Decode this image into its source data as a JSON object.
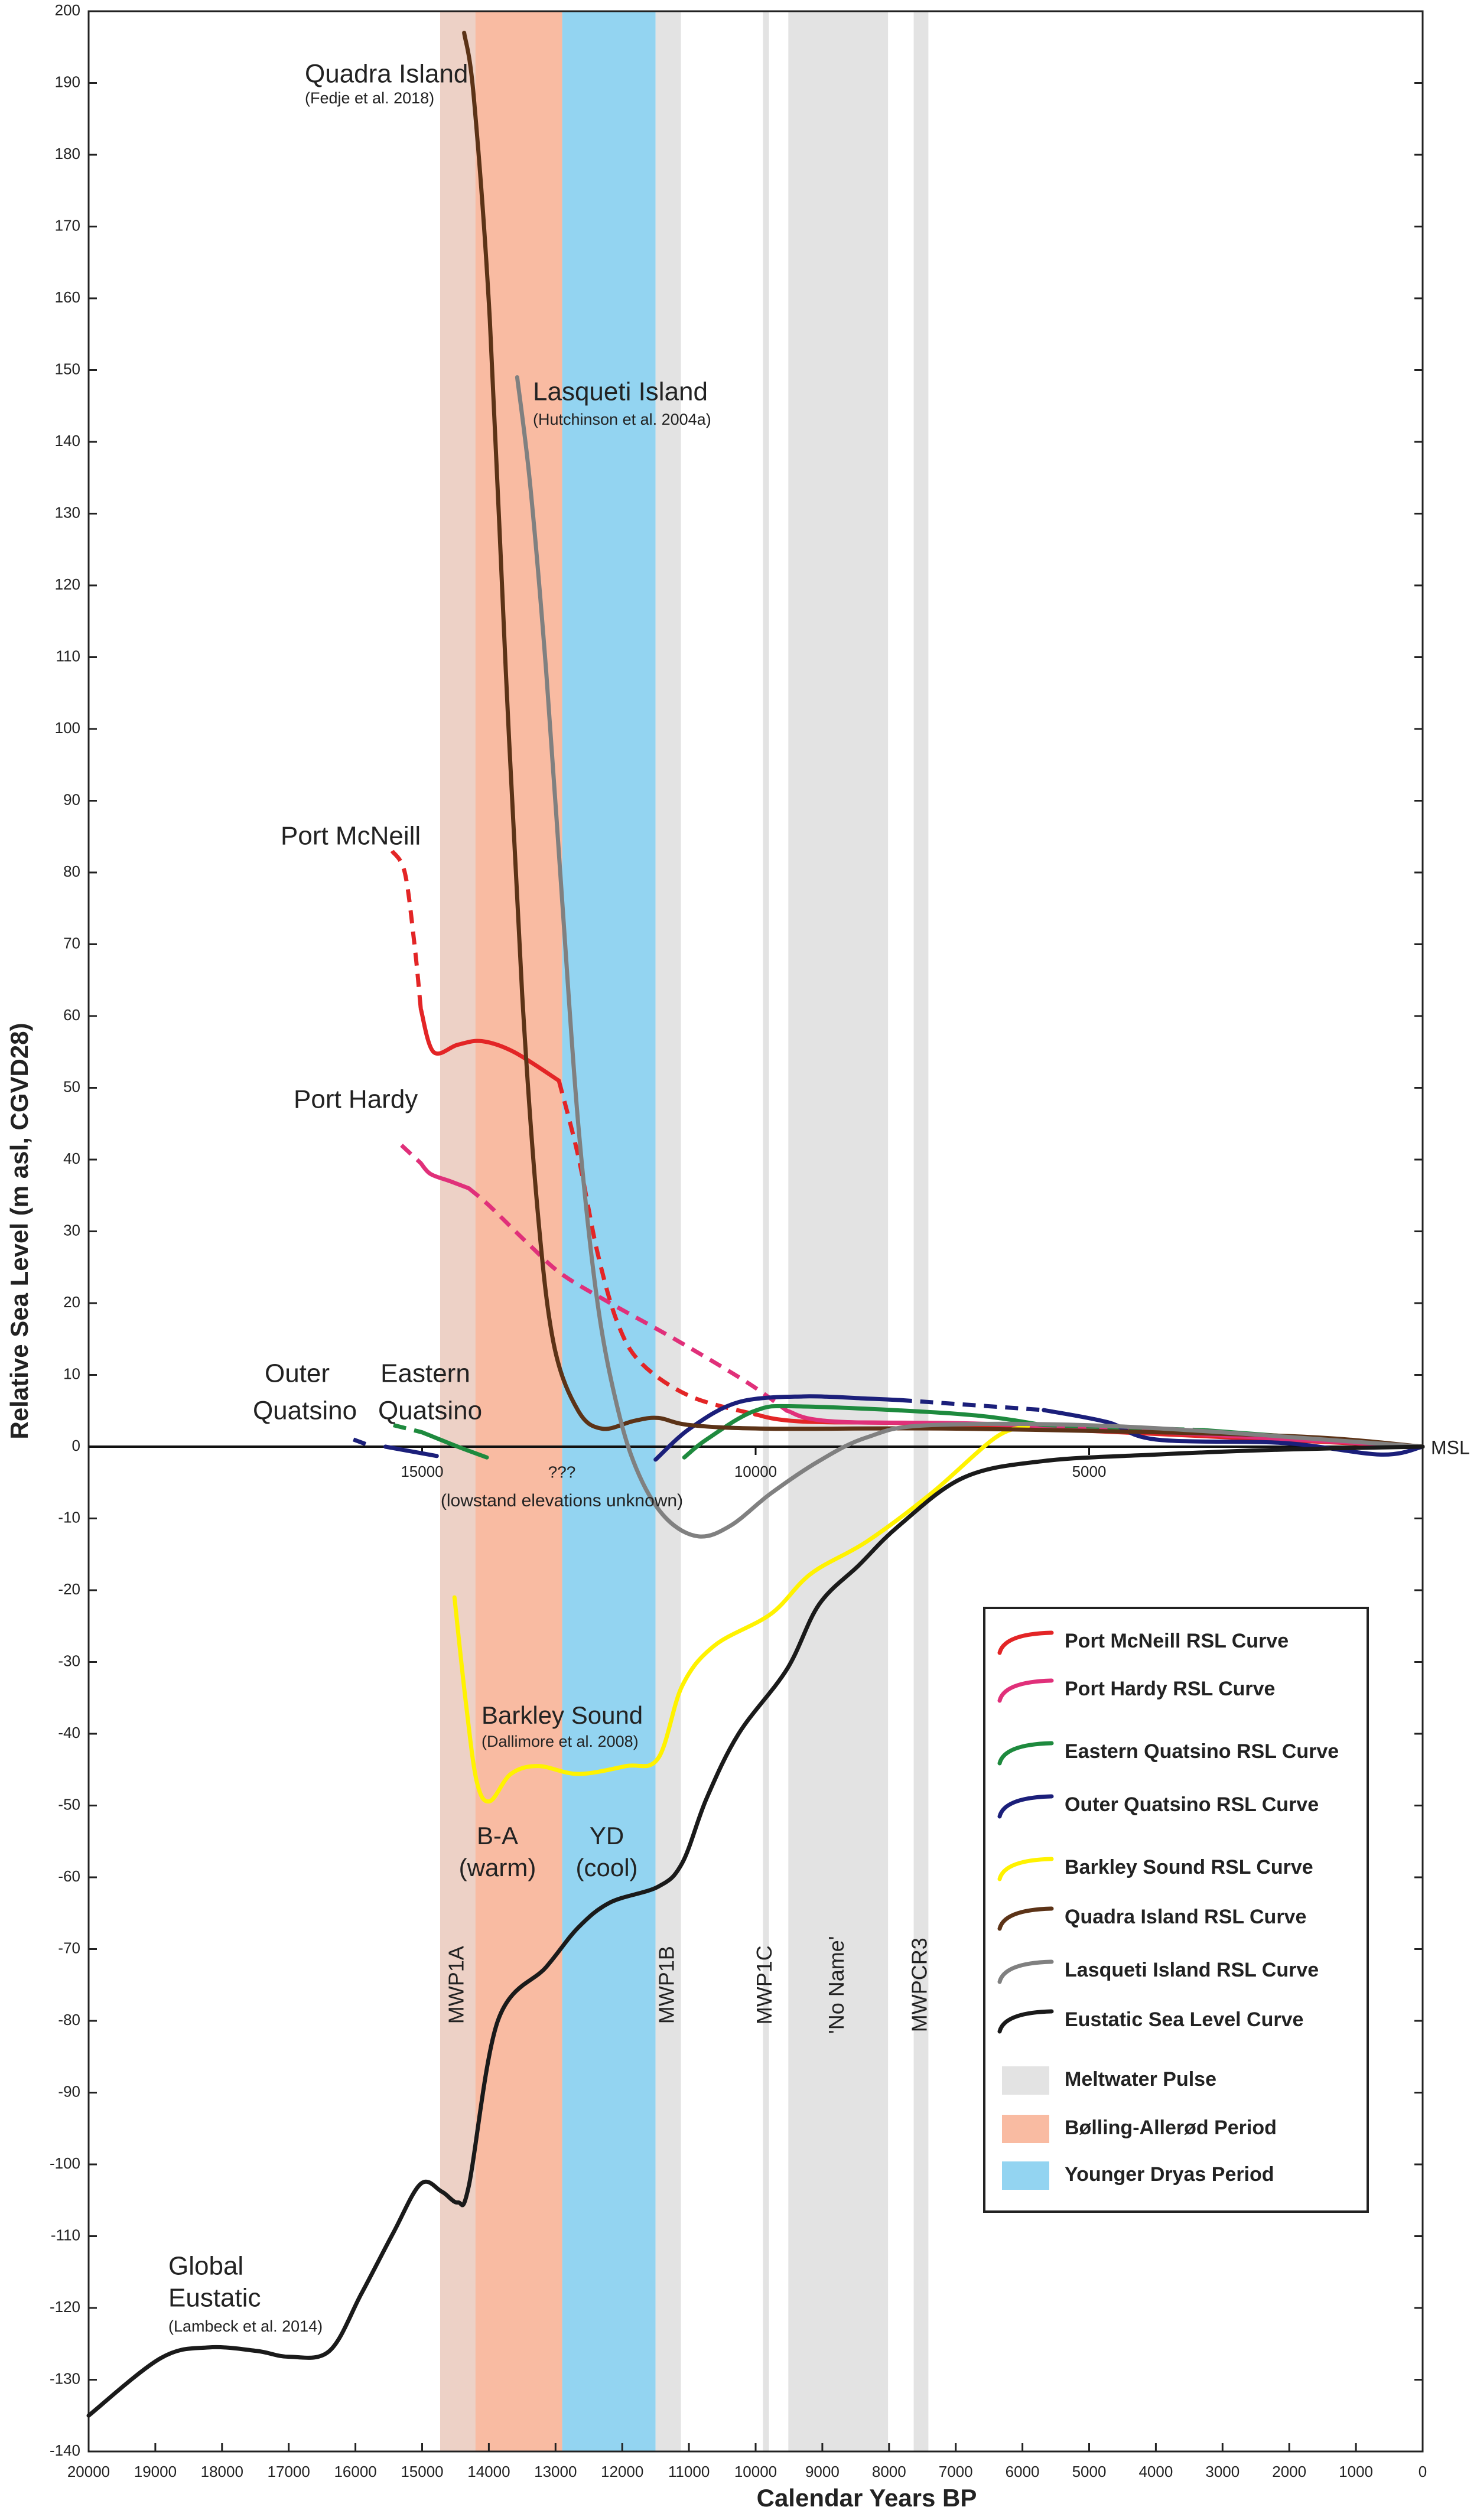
{
  "chart_data": {
    "type": "line",
    "x_label": "Calendar Years BP",
    "y_label": "Relative Sea Level (m asl, CGVD28)",
    "xlim": [
      20000,
      0
    ],
    "ylim": [
      -140,
      200
    ],
    "xticks": [
      20000,
      19000,
      18000,
      17000,
      16000,
      15000,
      14000,
      13000,
      12000,
      11000,
      10000,
      9000,
      8000,
      7000,
      6000,
      5000,
      4000,
      3000,
      2000,
      1000,
      0
    ],
    "yticks": [
      -140,
      -130,
      -120,
      -110,
      -100,
      -90,
      -80,
      -70,
      -60,
      -50,
      -40,
      -30,
      -20,
      -10,
      0,
      10,
      20,
      30,
      40,
      50,
      60,
      70,
      80,
      90,
      100,
      110,
      120,
      130,
      140,
      150,
      160,
      170,
      180,
      190,
      200
    ],
    "msl_label": "MSL",
    "msl_ticks": [
      15000,
      10000,
      5000
    ],
    "periods": [
      {
        "name": "Bølling-Allerød Period",
        "color": "#f9bba2",
        "start": 14730,
        "end": 12900
      },
      {
        "name": "Younger Dryas Period",
        "color": "#93d4f1",
        "start": 12900,
        "end": 11500
      }
    ],
    "pulses": {
      "name": "Meltwater Pulse",
      "color": "#e3e3e3",
      "bands": [
        {
          "label": "MWP1A",
          "start": 14730,
          "end": 14200
        },
        {
          "label": "MWP1B",
          "start": 11500,
          "end": 11120
        },
        {
          "label": "MWP1C",
          "start": 9890,
          "end": 9800
        },
        {
          "label": "'No Name'",
          "start": 9510,
          "end": 8015
        },
        {
          "label": "MWPCR3",
          "start": 7630,
          "end": 7410
        }
      ]
    },
    "series": [
      {
        "name": "Port McNeill RSL Curve",
        "color": "#e32526",
        "segments": [
          {
            "dashed": true,
            "x": [
              15450,
              15260,
              15115,
              15020
            ],
            "values": [
              83,
              80,
              70,
              61
            ]
          },
          {
            "dashed": false,
            "x": [
              15020,
              14830,
              14465,
              14105,
              13625,
              12950
            ],
            "values": [
              61,
              55,
              56,
              56.5,
              55,
              51
            ]
          },
          {
            "dashed": true,
            "x": [
              12950,
              12660,
              12370,
              12060,
              11700,
              10975,
              10010
            ],
            "values": [
              51,
              40.5,
              27,
              17,
              11.5,
              7,
              4.5
            ]
          },
          {
            "dashed": false,
            "x": [
              10010,
              9290,
              6880,
              0
            ],
            "values": [
              4.5,
              3.5,
              3,
              0
            ]
          }
        ]
      },
      {
        "name": "Port Hardy RSL Curve",
        "color": "#e0307a",
        "segments": [
          {
            "dashed": true,
            "x": [
              15310,
              15020
            ],
            "values": [
              42,
              39.5
            ]
          },
          {
            "dashed": false,
            "x": [
              15020,
              14875,
              14585,
              14300
            ],
            "values": [
              39.5,
              38,
              37,
              36
            ]
          },
          {
            "dashed": true,
            "x": [
              14300,
              13985,
              13380,
              12900,
              12180,
              11215,
              10135,
              9530
            ],
            "values": [
              36,
              33.5,
              28,
              24,
              20,
              15,
              9,
              5
            ]
          },
          {
            "dashed": false,
            "x": [
              9530,
              8810,
              6000,
              0
            ],
            "values": [
              5,
              3.5,
              3,
              0
            ]
          }
        ]
      },
      {
        "name": "Eastern Quatsino RSL Curve",
        "color": "#1e8a3e",
        "segments": [
          {
            "dashed": true,
            "x": [
              15430,
              15000
            ],
            "values": [
              3,
              2
            ]
          },
          {
            "dashed": false,
            "x": [
              15000,
              14465,
              14030
            ],
            "values": [
              2,
              0,
              -1.5
            ]
          },
          {
            "dashed": false,
            "x": [
              11070,
              10735,
              10010,
              9290,
              6880,
              5680
            ],
            "values": [
              -1.5,
              1,
              5,
              5.6,
              4.5,
              3
            ]
          },
          {
            "dashed": true,
            "x": [
              5680,
              3270
            ],
            "values": [
              3,
              2.3
            ]
          },
          {
            "dashed": false,
            "x": [
              3270,
              0
            ],
            "values": [
              2.3,
              0
            ]
          }
        ]
      },
      {
        "name": "Outer Quatsino RSL Curve",
        "color": "#1b1f7a",
        "segments": [
          {
            "dashed": true,
            "x": [
              16030,
              15740
            ],
            "values": [
              1,
              0
            ]
          },
          {
            "dashed": false,
            "x": [
              15550,
              14780
            ],
            "values": [
              0,
              -1.3
            ]
          },
          {
            "dashed": false,
            "x": [
              11500,
              10975,
              10255,
              9290,
              8330,
              7850
            ],
            "values": [
              -1.8,
              2.6,
              6.2,
              7,
              6.7,
              6.5
            ]
          },
          {
            "dashed": true,
            "x": [
              7850,
              5680
            ],
            "values": [
              6.5,
              5.1
            ]
          },
          {
            "dashed": false,
            "x": [
              5680,
              4720,
              4000,
              2070,
              625,
              0
            ],
            "values": [
              5.1,
              3.4,
              1,
              0.5,
              -1.1,
              0
            ]
          }
        ]
      },
      {
        "name": "Barkley Sound RSL Curve",
        "color": "#fff200",
        "segments": [
          {
            "dashed": false,
            "x": [
              14515,
              14345,
              14180,
              13985,
              13670,
              13260,
              12660,
              11940,
              11460,
              11100,
              10615,
              9770,
              9170,
              8330,
              7365,
              6400,
              5920
            ],
            "values": [
              -21,
              -35.6,
              -46.7,
              -49.4,
              -45.6,
              -44.5,
              -45.6,
              -44.5,
              -43.4,
              -33.3,
              -27.7,
              -23.3,
              -17.7,
              -13.2,
              -6.5,
              1.3,
              2.8
            ]
          }
        ]
      },
      {
        "name": "Quadra Island RSL Curve",
        "color": "#5c3317",
        "segments": [
          {
            "dashed": false,
            "x": [
              14370,
              14225,
              13985,
              13745,
              13500,
              13260,
              13020,
              12660,
              12300,
              11820,
              11460,
              10975,
              9770,
              6880,
              2070,
              0
            ],
            "values": [
              197,
              188,
              157,
              108,
              63,
              32,
              14,
              5,
              2.5,
              3.6,
              4,
              3,
              2.5,
              2.5,
              1.5,
              0
            ]
          }
        ]
      },
      {
        "name": "Lasqueti Island RSL Curve",
        "color": "#808080",
        "segments": [
          {
            "dashed": false,
            "x": [
              13575,
              13380,
              13140,
              12900,
              12660,
              12370,
              12060,
              11745,
              11340,
              10855,
              10375,
              9770,
              9050,
              8330,
              7365,
              4475,
              0
            ],
            "values": [
              149,
              134,
              108,
              76,
              45,
              20,
              5,
              -4,
              -10,
              -12.5,
              -11,
              -6.5,
              -2,
              1.3,
              3,
              2.8,
              0
            ]
          }
        ]
      },
      {
        "name": "Eustatic Sea Level Curve",
        "color": "#1a1a1a",
        "segments": [
          {
            "dashed": false,
            "x": [
              20000,
              18920,
              18200,
              17475,
              16995,
              16390,
              15910,
              15430,
              15020,
              14705,
              14465,
              14300,
              13865,
              13140,
              12660,
              12180,
              11460,
              11100,
              10735,
              10255,
              9530,
              9050,
              8450,
              7850,
              6880,
              5680,
              4000,
              2070,
              0
            ],
            "values": [
              -135,
              -127,
              -125.5,
              -126,
              -126.8,
              -126,
              -118,
              -109.5,
              -102.7,
              -103.8,
              -105.3,
              -103,
              -80,
              -72.5,
              -67,
              -63.5,
              -61.3,
              -58,
              -49,
              -40,
              -31,
              -22,
              -16.5,
              -11,
              -4.3,
              -2,
              -1.1,
              -0.4,
              0
            ]
          }
        ]
      }
    ],
    "annotations": [
      "Quadra Island",
      "(Fedje et al. 2018)",
      "Lasqueti Island",
      "(Hutchinson et al. 2004a)",
      "Port McNeill",
      "Port Hardy",
      "Outer",
      "Quatsino",
      "Eastern",
      "Quatsino",
      "???",
      "(lowstand elevations unknown)",
      "Barkley Sound",
      "(Dallimore et al. 2008)",
      "B-A",
      "(warm)",
      "YD",
      "(cool)",
      "Global",
      "Eustatic",
      "(Lambeck et al. 2014)"
    ]
  }
}
